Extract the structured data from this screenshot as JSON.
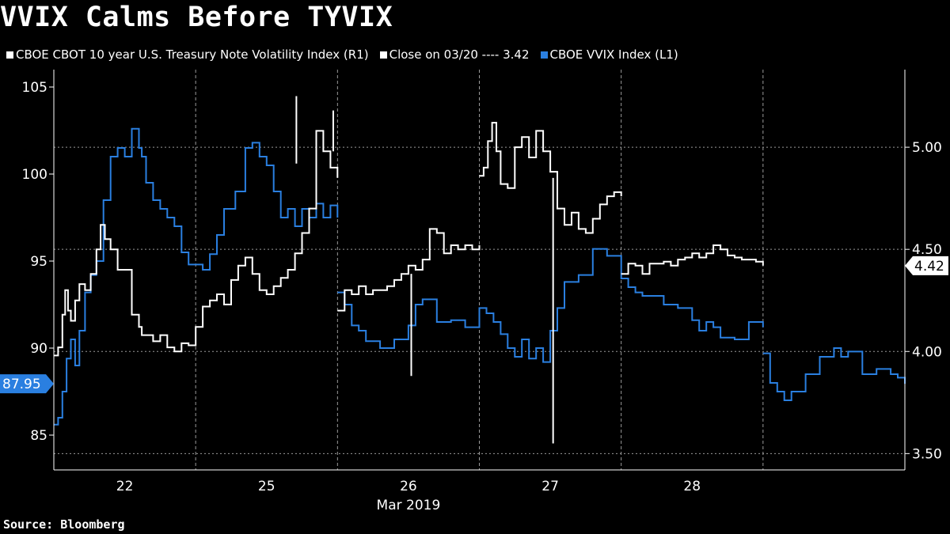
{
  "title": "VVIX Calms Before TYVIX",
  "legend": {
    "tyvix": "CBOE CBOT 10 year U.S. Treasury Note Volatility Index  (R1)",
    "close": "Close on 03/20 ---- 3.42",
    "vvix": "CBOE VVIX Index  (L1)"
  },
  "source": "Source:  Bloomberg",
  "colors": {
    "background": "#000000",
    "tyvix": "#ffffff",
    "vvix": "#2a7fe0",
    "grid": "#9a9a9a"
  },
  "chart_data": {
    "type": "line",
    "title": "VVIX Calms Before TYVIX",
    "xlabel": "Mar 2019",
    "x_ticks": [
      "22",
      "25",
      "26",
      "27",
      "28"
    ],
    "y_left": {
      "range": [
        83,
        106
      ],
      "ticks": [
        85,
        90,
        95,
        100,
        105
      ],
      "last_value_label": "87.95"
    },
    "y_right": {
      "range": [
        3.42,
        5.38
      ],
      "ticks": [
        "3.50",
        "4.00",
        "4.50",
        "5.00"
      ],
      "last_value_label": "4.42"
    },
    "reference_line": {
      "axis": "right",
      "value": 3.42,
      "label": "Close on 03/20 ---- 3.42"
    },
    "x_range": [
      0,
      6
    ],
    "session_breaks": [
      1,
      2,
      3,
      4,
      5
    ],
    "series": [
      {
        "name": "CBOE VVIX Index (L1)",
        "axis": "left",
        "color": "#2a7fe0",
        "segments": [
          {
            "x": [
              0.0,
              0.03,
              0.06,
              0.09,
              0.12,
              0.15,
              0.18,
              0.22,
              0.26,
              0.3,
              0.35,
              0.4,
              0.45,
              0.5,
              0.55,
              0.6,
              0.62,
              0.65,
              0.7,
              0.75,
              0.8,
              0.85,
              0.9,
              0.95,
              1.0,
              1.05,
              1.1,
              1.15,
              1.2,
              1.28,
              1.35,
              1.4,
              1.45,
              1.5,
              1.55,
              1.6,
              1.65,
              1.7,
              1.75,
              1.8,
              1.85,
              1.9,
              1.95,
              2.0
            ],
            "y": [
              85.6,
              86.0,
              87.5,
              89.4,
              90.5,
              89.0,
              91.0,
              93.2,
              94.2,
              95.0,
              98.5,
              101.0,
              101.5,
              101.0,
              102.6,
              101.5,
              101.0,
              99.5,
              98.5,
              98.0,
              97.5,
              97.0,
              95.5,
              94.8,
              94.8,
              94.5,
              95.4,
              96.5,
              98.0,
              99.0,
              101.5,
              101.8,
              101.0,
              100.5,
              99.0,
              97.5,
              98.0,
              97.0,
              98.0,
              97.5,
              98.3,
              97.5,
              98.2,
              97.5
            ]
          },
          {
            "x": [
              2.0,
              2.05,
              2.1,
              2.15,
              2.2,
              2.3,
              2.4,
              2.5,
              2.55,
              2.6,
              2.7,
              2.8,
              2.9,
              3.0,
              3.05,
              3.1,
              3.15,
              3.2,
              3.25,
              3.3,
              3.35,
              3.4,
              3.45,
              3.5,
              3.55,
              3.6,
              3.7,
              3.8,
              3.9,
              4.0,
              4.05,
              4.1,
              4.15,
              4.2,
              4.3,
              4.4,
              4.5,
              4.55,
              4.6,
              4.65,
              4.7,
              4.8,
              4.9,
              5.0
            ],
            "y": [
              93.2,
              92.5,
              91.3,
              91.0,
              90.4,
              90.0,
              90.5,
              91.3,
              92.5,
              92.8,
              91.5,
              91.6,
              91.2,
              92.3,
              92.0,
              91.5,
              90.8,
              90.0,
              89.5,
              90.5,
              89.4,
              90.0,
              89.2,
              91.0,
              92.3,
              93.8,
              94.2,
              95.7,
              95.3,
              94.0,
              93.5,
              93.2,
              93.0,
              93.0,
              92.5,
              92.3,
              91.6,
              91.0,
              91.5,
              91.2,
              90.6,
              90.5,
              91.5,
              91.2
            ]
          },
          {
            "x": [
              5.0,
              5.05,
              5.1,
              5.15,
              5.2,
              5.3,
              5.4,
              5.5,
              5.55,
              5.6,
              5.7,
              5.8,
              5.9,
              5.95,
              6.0
            ],
            "y": [
              89.7,
              88.0,
              87.5,
              87.0,
              87.5,
              88.5,
              89.5,
              90.0,
              89.5,
              89.8,
              88.5,
              88.8,
              88.5,
              88.3,
              87.95
            ]
          }
        ]
      },
      {
        "name": "CBOE CBOT 10 year U.S. Treasury Note Volatility Index (R1)",
        "axis": "right",
        "color": "#ffffff",
        "segments": [
          {
            "x": [
              0.0,
              0.03,
              0.06,
              0.08,
              0.1,
              0.12,
              0.15,
              0.18,
              0.22,
              0.26,
              0.3,
              0.33,
              0.36,
              0.4,
              0.45,
              0.5,
              0.55,
              0.6,
              0.62,
              0.65,
              0.7,
              0.75,
              0.8,
              0.85,
              0.9,
              0.95,
              1.0,
              1.05,
              1.1,
              1.15,
              1.2,
              1.25,
              1.3,
              1.35,
              1.4,
              1.45,
              1.5,
              1.55,
              1.6,
              1.65,
              1.7,
              1.75,
              1.8,
              1.85,
              1.9,
              1.95,
              2.0
            ],
            "y": [
              3.98,
              4.02,
              4.18,
              4.3,
              4.2,
              4.15,
              4.25,
              4.33,
              4.3,
              4.38,
              4.5,
              4.62,
              4.55,
              4.5,
              4.4,
              4.4,
              4.18,
              4.12,
              4.08,
              4.08,
              4.05,
              4.08,
              4.02,
              4.0,
              4.04,
              4.03,
              4.12,
              4.22,
              4.25,
              4.28,
              4.23,
              4.35,
              4.42,
              4.46,
              4.38,
              4.3,
              4.28,
              4.32,
              4.36,
              4.4,
              4.48,
              4.58,
              4.7,
              5.08,
              4.98,
              4.9,
              4.85
            ]
          },
          {
            "x": [
              2.0,
              2.05,
              2.1,
              2.15,
              2.2,
              2.25,
              2.3,
              2.35,
              2.4,
              2.45,
              2.5,
              2.55,
              2.6,
              2.65,
              2.7,
              2.75,
              2.8,
              2.85,
              2.9,
              2.95,
              3.0
            ],
            "y": [
              4.2,
              4.3,
              4.28,
              4.32,
              4.28,
              4.3,
              4.3,
              4.32,
              4.35,
              4.38,
              4.42,
              4.4,
              4.45,
              4.6,
              4.58,
              4.48,
              4.52,
              4.5,
              4.52,
              4.5,
              4.52
            ]
          },
          {
            "x": [
              3.0,
              3.03,
              3.06,
              3.09,
              3.12,
              3.15,
              3.2,
              3.25,
              3.3,
              3.35,
              3.4,
              3.45,
              3.5,
              3.55,
              3.6,
              3.65,
              3.7,
              3.75,
              3.8,
              3.85,
              3.9,
              3.95,
              4.0
            ],
            "y": [
              4.86,
              4.9,
              5.03,
              5.12,
              4.98,
              4.82,
              4.8,
              5.0,
              5.05,
              4.95,
              5.08,
              4.98,
              4.88,
              4.7,
              4.62,
              4.68,
              4.6,
              4.58,
              4.65,
              4.72,
              4.76,
              4.78,
              4.76
            ]
          },
          {
            "x": [
              4.0,
              4.05,
              4.1,
              4.15,
              4.2,
              4.25,
              4.3,
              4.35,
              4.4,
              4.45,
              4.5,
              4.55,
              4.6,
              4.65,
              4.7,
              4.75,
              4.8,
              4.85,
              4.9,
              4.95,
              5.0
            ],
            "y": [
              4.38,
              4.43,
              4.42,
              4.38,
              4.43,
              4.43,
              4.44,
              4.42,
              4.45,
              4.46,
              4.48,
              4.46,
              4.48,
              4.52,
              4.5,
              4.47,
              4.46,
              4.45,
              4.45,
              4.44,
              4.42
            ]
          }
        ],
        "spikes": [
          {
            "x": 2.52,
            "low": 3.88,
            "high": 4.38
          },
          {
            "x": 3.52,
            "low": 3.55,
            "high": 4.85
          },
          {
            "x": 1.71,
            "low": 4.92,
            "high": 5.25
          },
          {
            "x": 1.97,
            "low": 4.98,
            "high": 5.18
          }
        ]
      }
    ]
  }
}
